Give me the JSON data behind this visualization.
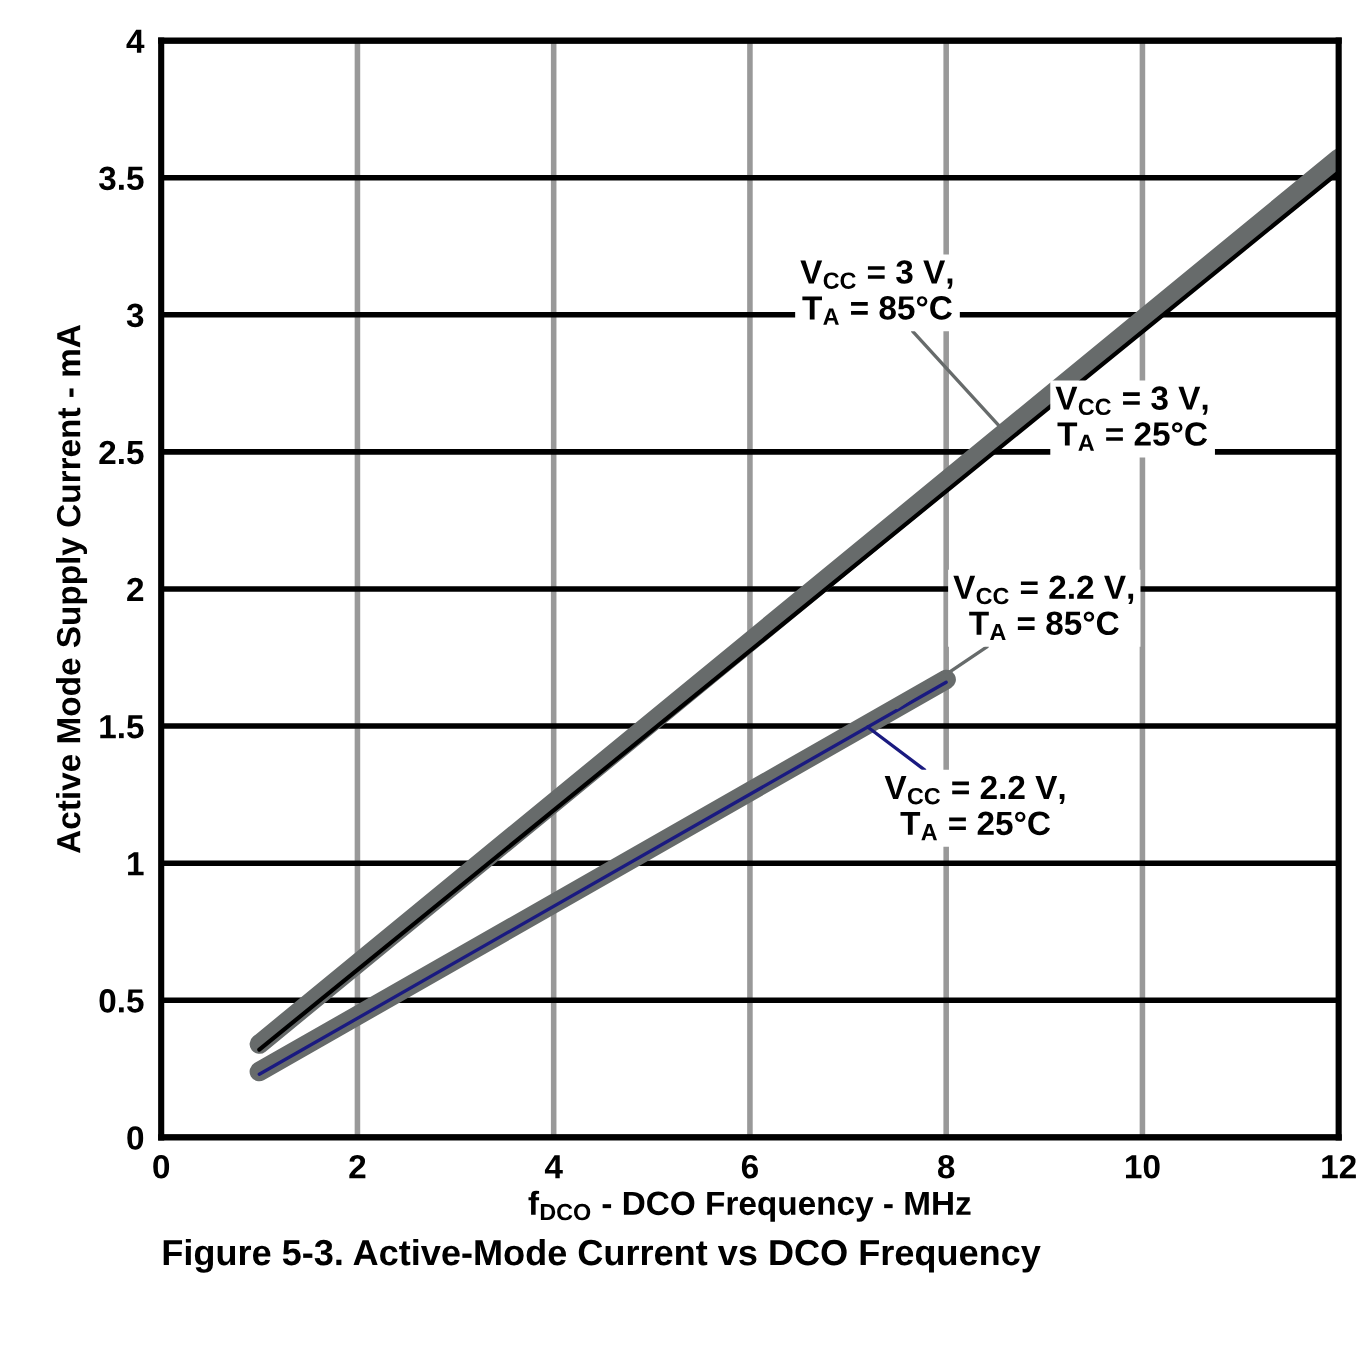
{
  "chart_data": {
    "type": "line",
    "xlabel": "f$_{DCO}$ - DCO Frequency - MHz",
    "ylabel": "Active Mode Supply Current - mA",
    "title": "Figure 5-3. Active-Mode Current vs DCO Frequency",
    "xlim": [
      0,
      12
    ],
    "ylim": [
      0,
      4
    ],
    "xticks": [
      0,
      2,
      4,
      6,
      8,
      10,
      12
    ],
    "yticks": [
      0,
      0.5,
      1,
      1.5,
      2,
      2.5,
      3,
      3.5,
      4
    ],
    "grid": true,
    "marker": "none",
    "line_style": "solid",
    "series": [
      {
        "name": "V$_{CC}$ = 3 V,\nT$_{A}$ = 85°C",
        "color": "#676b6b",
        "x": [
          1,
          12
        ],
        "values": [
          0.34,
          3.57
        ]
      },
      {
        "name": "V$_{CC}$ = 3 V,\nT$_{A}$ = 25°C",
        "color": "#000000",
        "x": [
          1,
          12
        ],
        "values": [
          0.32,
          3.52
        ]
      },
      {
        "name": "V$_{CC}$ = 2.2 V,\nT$_{A}$ = 85°C",
        "color": "#676b6b",
        "x": [
          1,
          8
        ],
        "values": [
          0.24,
          1.67
        ]
      },
      {
        "name": "V$_{CC}$ = 2.2 V,\nT$_{A}$ = 25°C",
        "color": "#1a1a80",
        "x": [
          1,
          8
        ],
        "values": [
          0.23,
          1.66
        ]
      }
    ]
  }
}
